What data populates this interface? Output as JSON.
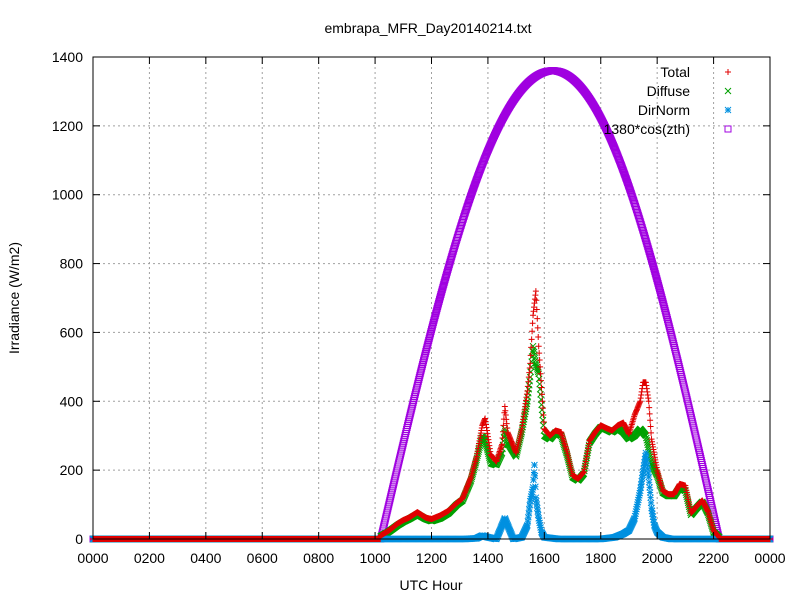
{
  "chart_data": {
    "type": "scatter",
    "title": "embrapa_MFR_Day20140214.txt",
    "xlabel": "UTC Hour",
    "ylabel": "Irradiance (W/m2)",
    "xlim": [
      0,
      24
    ],
    "ylim": [
      0,
      1400
    ],
    "x_ticks": [
      0,
      2,
      4,
      6,
      8,
      10,
      12,
      14,
      16,
      18,
      20,
      22,
      24
    ],
    "x_tick_labels": [
      "0000",
      "0200",
      "0400",
      "0600",
      "0800",
      "1000",
      "1200",
      "1400",
      "1600",
      "1800",
      "2000",
      "2200",
      "0000"
    ],
    "y_ticks": [
      0,
      200,
      400,
      600,
      800,
      1000,
      1200,
      1400
    ],
    "y_tick_labels": [
      "0",
      "200",
      "400",
      "600",
      "800",
      "1000",
      "1200",
      "1400"
    ],
    "grid": true,
    "legend_position": "top-right",
    "series": [
      {
        "name": "Total",
        "color": "#e00000",
        "marker": "plus",
        "points": [
          [
            10.2,
            10
          ],
          [
            10.5,
            25
          ],
          [
            10.8,
            45
          ],
          [
            11.0,
            55
          ],
          [
            11.2,
            62
          ],
          [
            11.5,
            78
          ],
          [
            11.8,
            62
          ],
          [
            12.0,
            58
          ],
          [
            12.3,
            68
          ],
          [
            12.6,
            82
          ],
          [
            12.9,
            105
          ],
          [
            13.1,
            118
          ],
          [
            13.4,
            180
          ],
          [
            13.6,
            240
          ],
          [
            13.8,
            330
          ],
          [
            13.9,
            350
          ],
          [
            14.1,
            245
          ],
          [
            14.3,
            225
          ],
          [
            14.5,
            275
          ],
          [
            14.6,
            385
          ],
          [
            14.7,
            310
          ],
          [
            15.0,
            250
          ],
          [
            15.2,
            320
          ],
          [
            15.4,
            430
          ],
          [
            15.5,
            510
          ],
          [
            15.6,
            650
          ],
          [
            15.7,
            720
          ],
          [
            15.8,
            560
          ],
          [
            16.0,
            320
          ],
          [
            16.2,
            300
          ],
          [
            16.4,
            315
          ],
          [
            16.6,
            310
          ],
          [
            16.8,
            255
          ],
          [
            17.0,
            185
          ],
          [
            17.2,
            175
          ],
          [
            17.4,
            195
          ],
          [
            17.6,
            285
          ],
          [
            17.8,
            310
          ],
          [
            18.0,
            330
          ],
          [
            18.2,
            322
          ],
          [
            18.4,
            315
          ],
          [
            18.6,
            330
          ],
          [
            18.8,
            338
          ],
          [
            19.0,
            305
          ],
          [
            19.2,
            360
          ],
          [
            19.4,
            400
          ],
          [
            19.5,
            455
          ],
          [
            19.6,
            455
          ],
          [
            19.7,
            400
          ],
          [
            19.8,
            290
          ],
          [
            20.0,
            200
          ],
          [
            20.2,
            140
          ],
          [
            20.4,
            130
          ],
          [
            20.6,
            130
          ],
          [
            20.8,
            160
          ],
          [
            21.0,
            155
          ],
          [
            21.2,
            75
          ],
          [
            21.4,
            95
          ],
          [
            21.6,
            112
          ],
          [
            21.8,
            80
          ],
          [
            22.0,
            25
          ],
          [
            22.2,
            5
          ]
        ]
      },
      {
        "name": "Diffuse",
        "color": "#00a000",
        "marker": "cross",
        "points": [
          [
            10.2,
            8
          ],
          [
            10.5,
            22
          ],
          [
            10.8,
            40
          ],
          [
            11.0,
            50
          ],
          [
            11.2,
            58
          ],
          [
            11.5,
            72
          ],
          [
            11.8,
            58
          ],
          [
            12.0,
            52
          ],
          [
            12.3,
            60
          ],
          [
            12.6,
            75
          ],
          [
            12.9,
            100
          ],
          [
            13.1,
            112
          ],
          [
            13.4,
            170
          ],
          [
            13.6,
            230
          ],
          [
            13.8,
            300
          ],
          [
            13.9,
            285
          ],
          [
            14.1,
            220
          ],
          [
            14.3,
            215
          ],
          [
            14.5,
            250
          ],
          [
            14.6,
            320
          ],
          [
            14.7,
            280
          ],
          [
            15.0,
            240
          ],
          [
            15.2,
            310
          ],
          [
            15.4,
            400
          ],
          [
            15.5,
            470
          ],
          [
            15.6,
            560
          ],
          [
            15.7,
            510
          ],
          [
            15.8,
            480
          ],
          [
            16.0,
            300
          ],
          [
            16.2,
            290
          ],
          [
            16.4,
            310
          ],
          [
            16.6,
            300
          ],
          [
            16.8,
            245
          ],
          [
            17.0,
            180
          ],
          [
            17.2,
            170
          ],
          [
            17.4,
            190
          ],
          [
            17.6,
            280
          ],
          [
            17.8,
            305
          ],
          [
            18.0,
            325
          ],
          [
            18.2,
            318
          ],
          [
            18.4,
            310
          ],
          [
            18.6,
            322
          ],
          [
            18.8,
            310
          ],
          [
            19.0,
            290
          ],
          [
            19.2,
            300
          ],
          [
            19.4,
            320
          ],
          [
            19.5,
            310
          ],
          [
            19.6,
            300
          ],
          [
            19.7,
            260
          ],
          [
            19.8,
            220
          ],
          [
            20.0,
            185
          ],
          [
            20.2,
            135
          ],
          [
            20.4,
            125
          ],
          [
            20.6,
            125
          ],
          [
            20.8,
            150
          ],
          [
            21.0,
            140
          ],
          [
            21.2,
            70
          ],
          [
            21.4,
            90
          ],
          [
            21.6,
            108
          ],
          [
            21.8,
            75
          ],
          [
            22.0,
            20
          ],
          [
            22.2,
            5
          ]
        ]
      },
      {
        "name": "DirNorm",
        "color": "#0090e0",
        "marker": "star",
        "points": [
          [
            10.2,
            0
          ],
          [
            10.8,
            0
          ],
          [
            11.4,
            0
          ],
          [
            12.0,
            0
          ],
          [
            12.6,
            0
          ],
          [
            13.2,
            0
          ],
          [
            13.6,
            2
          ],
          [
            13.8,
            10
          ],
          [
            14.0,
            5
          ],
          [
            14.3,
            0
          ],
          [
            14.6,
            60
          ],
          [
            14.9,
            0
          ],
          [
            15.2,
            5
          ],
          [
            15.4,
            40
          ],
          [
            15.5,
            110
          ],
          [
            15.6,
            150
          ],
          [
            15.65,
            215
          ],
          [
            15.7,
            120
          ],
          [
            15.8,
            60
          ],
          [
            15.9,
            20
          ],
          [
            16.0,
            5
          ],
          [
            16.5,
            0
          ],
          [
            17.0,
            0
          ],
          [
            17.5,
            0
          ],
          [
            18.0,
            0
          ],
          [
            18.5,
            5
          ],
          [
            18.8,
            15
          ],
          [
            19.0,
            25
          ],
          [
            19.2,
            60
          ],
          [
            19.3,
            100
          ],
          [
            19.4,
            140
          ],
          [
            19.5,
            195
          ],
          [
            19.6,
            250
          ],
          [
            19.7,
            180
          ],
          [
            19.8,
            90
          ],
          [
            19.9,
            40
          ],
          [
            20.0,
            20
          ],
          [
            20.2,
            5
          ],
          [
            20.5,
            0
          ],
          [
            21.0,
            0
          ],
          [
            21.5,
            0
          ],
          [
            22.0,
            0
          ],
          [
            22.2,
            0
          ]
        ]
      },
      {
        "name": "1380*cos(zth)",
        "color": "#a000e0",
        "marker": "square",
        "day_start": 10.2,
        "day_end": 22.2,
        "noon": 16.3,
        "peak": 1360
      }
    ]
  }
}
